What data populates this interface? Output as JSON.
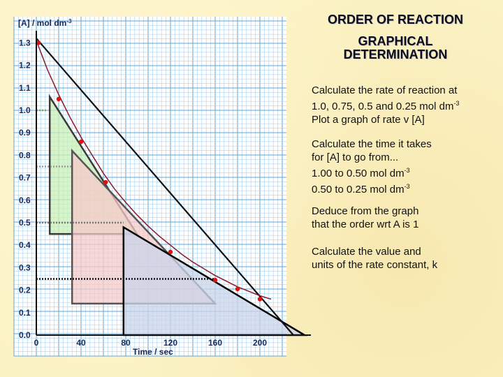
{
  "slide": {
    "title_1": "ORDER OF REACTION",
    "title_2a": "GRAPHICAL",
    "title_2b": "DETERMINATION",
    "para1": [
      "Calculate the rate of reaction at",
      "1.0, 0.75, 0.5 and 0.25 mol dm",
      "Plot a graph of rate v [A]"
    ],
    "para2": [
      "Calculate the time it takes",
      "for [A] to go from...",
      "1.00 to 0.50 mol dm",
      "0.50 to 0.25 mol dm"
    ],
    "para3": [
      "Deduce from the graph",
      "that the order wrt A is 1"
    ],
    "para4": [
      "Calculate the value and",
      "units of the rate constant, k"
    ],
    "superscript": "-3"
  },
  "chart_data": {
    "type": "scatter",
    "ylabel": "[A] / mol dm",
    "ylabel_sup": "-3",
    "xlabel": "Time / sec",
    "xlim": [
      0,
      220
    ],
    "ylim": [
      0,
      1.4
    ],
    "x_ticks": [
      "0",
      "40",
      "80",
      "120",
      "160",
      "200"
    ],
    "x_tick_values": [
      0,
      40,
      80,
      120,
      160,
      200
    ],
    "y_ticks": [
      "0.0",
      "0.1",
      "0.2",
      "0.3",
      "0.4",
      "0.5",
      "0.6",
      "0.7",
      "0.8",
      "0.9",
      "1.0",
      "1.1",
      "1.2",
      "1.3"
    ],
    "y_tick_values": [
      0.0,
      0.1,
      0.2,
      0.3,
      0.4,
      0.5,
      0.6,
      0.7,
      0.8,
      0.9,
      1.0,
      1.1,
      1.2,
      1.3
    ],
    "grid": true,
    "points": [
      {
        "x": 2,
        "y": 1.3
      },
      {
        "x": 20,
        "y": 1.05
      },
      {
        "x": 40,
        "y": 0.86
      },
      {
        "x": 62,
        "y": 0.68
      },
      {
        "x": 120,
        "y": 0.37
      },
      {
        "x": 160,
        "y": 0.245
      },
      {
        "x": 180,
        "y": 0.205
      },
      {
        "x": 200,
        "y": 0.16
      }
    ],
    "curve": [
      [
        0,
        1.31
      ],
      [
        10,
        1.18
      ],
      [
        20,
        1.07
      ],
      [
        30,
        0.97
      ],
      [
        40,
        0.88
      ],
      [
        50,
        0.8
      ],
      [
        60,
        0.72
      ],
      [
        70,
        0.65
      ],
      [
        80,
        0.59
      ],
      [
        90,
        0.535
      ],
      [
        100,
        0.485
      ],
      [
        110,
        0.44
      ],
      [
        120,
        0.4
      ],
      [
        130,
        0.36
      ],
      [
        140,
        0.325
      ],
      [
        150,
        0.295
      ],
      [
        160,
        0.265
      ],
      [
        170,
        0.24
      ],
      [
        180,
        0.215
      ],
      [
        190,
        0.195
      ],
      [
        200,
        0.175
      ],
      [
        210,
        0.16
      ]
    ],
    "tangents": [
      {
        "conc": 1.0,
        "apex_x": 12,
        "apex_y": 1.06,
        "base_y": 0.45,
        "base_x1": 12,
        "base_x2": 90,
        "fill": "#c9efb5",
        "stroke": "#3a3a3a"
      },
      {
        "conc": 0.75,
        "apex_x": 32,
        "apex_y": 0.82,
        "base_y": 0.14,
        "base_x1": 32,
        "base_x2": 160,
        "fill": "#f6c9c9",
        "stroke": "#555555"
      },
      {
        "conc": 0.5,
        "apex_x": 78,
        "apex_y": 0.48,
        "base_y": 0.0,
        "base_x1": 78,
        "base_x2": 240,
        "fill": "#c9d4ea",
        "stroke": "#000000"
      },
      {
        "conc": 1.3,
        "apex_x": 0,
        "apex_y": 1.3,
        "base_y": 0.0,
        "base_x1": 0,
        "base_x2": 0,
        "fill": "none",
        "stroke": "#000000"
      }
    ],
    "reference_lines": [
      {
        "y": 1.0,
        "x_end": 10,
        "color": "#7fa05a"
      },
      {
        "y": 0.75,
        "x_end": 32,
        "color": "#9a9a9a"
      },
      {
        "y": 0.5,
        "x_end": 78,
        "color": "#777777"
      },
      {
        "y": 0.25,
        "x_end": 160,
        "color": "#111111"
      }
    ]
  }
}
